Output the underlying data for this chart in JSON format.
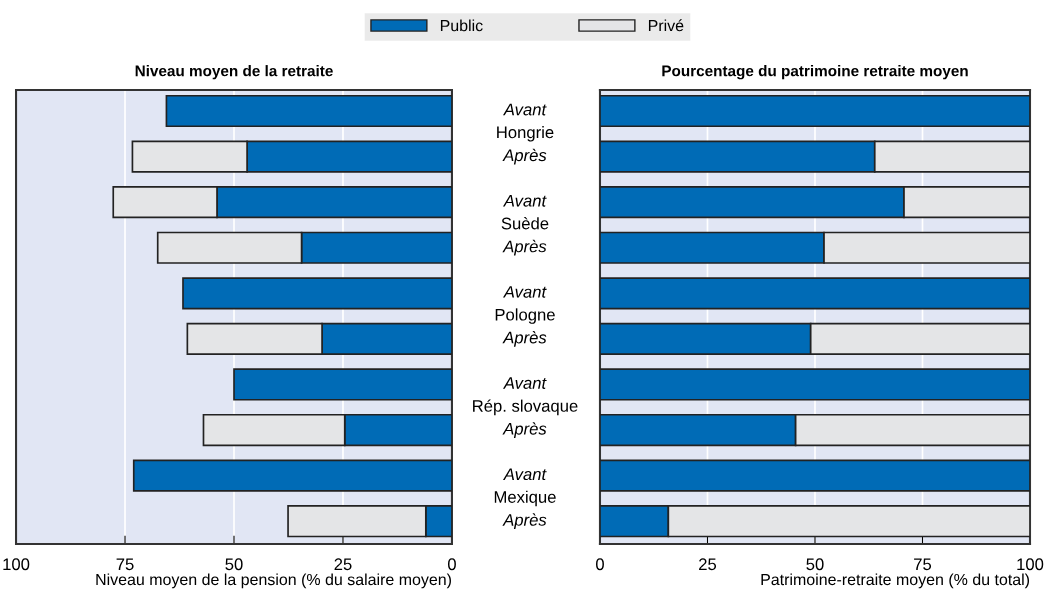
{
  "chart_data": [
    {
      "type": "bar",
      "orientation": "horizontal",
      "stacked": true,
      "title": "Niveau moyen de la retraite",
      "xlabel": "Niveau moyen de la pension (% du salaire moyen)",
      "categories": [
        "Avant",
        "Après",
        "Avant",
        "Après",
        "Avant",
        "Après",
        "Avant",
        "Après",
        "Avant",
        "Après"
      ],
      "annotations": [
        "Hongrie",
        "Suède",
        "Pologne",
        "Rép. slovaque",
        "Mexique"
      ],
      "series": [
        {
          "name": "Public",
          "color": "#006bb6",
          "values": [
            65.5,
            47.0,
            53.9,
            34.5,
            61.7,
            29.8,
            50.0,
            24.6,
            73.0,
            6.0
          ]
        },
        {
          "name": "Privé",
          "color": "#e4e5e7",
          "values": [
            null,
            26.3,
            23.8,
            33.0,
            null,
            30.9,
            null,
            32.4,
            null,
            31.6
          ]
        }
      ],
      "xlim": [
        100,
        0
      ],
      "xticks": [
        100,
        75,
        50,
        25,
        0
      ],
      "grid": "x",
      "legend": "top"
    },
    {
      "type": "bar",
      "orientation": "horizontal",
      "stacked": true,
      "title": "Pourcentage du patrimoine retraite moyen",
      "xlabel": "Patrimoine-retraite moyen (% du total)",
      "series": [
        {
          "name": "Public",
          "color": "#006bb6",
          "values": [
            100,
            63.9,
            70.7,
            52.1,
            100,
            49.0,
            100,
            45.5,
            100,
            15.9
          ]
        },
        {
          "name": "Privé",
          "color": "#e4e5e7",
          "values": [
            null,
            36.1,
            29.3,
            47.9,
            null,
            51.0,
            null,
            54.5,
            null,
            84.1
          ]
        }
      ],
      "xlim": [
        0,
        100
      ],
      "xticks": [
        0,
        25,
        50,
        75,
        100
      ],
      "grid": "x",
      "tick_labels": "x"
    }
  ]
}
